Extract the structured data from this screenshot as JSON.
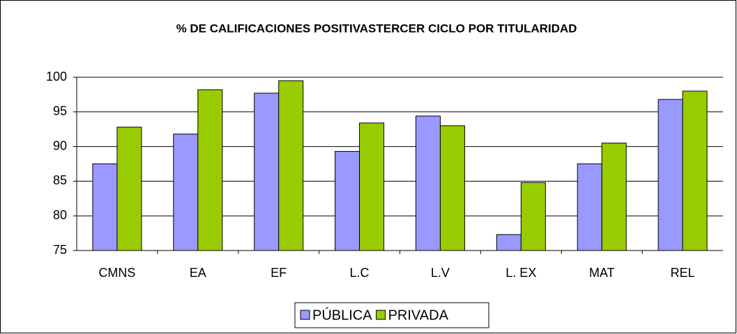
{
  "chart_data": {
    "type": "bar",
    "title": "% DE CALIFICACIONES POSITIVASTERCER CICLO POR TITULARIDAD",
    "categories": [
      "CMNS",
      "EA",
      "EF",
      "L.C",
      "L.V",
      "L. EX",
      "MAT",
      "REL"
    ],
    "series": [
      {
        "name": "PÚBLICA",
        "color": "#9999ff",
        "values": [
          87.5,
          91.8,
          97.7,
          89.3,
          94.4,
          77.3,
          87.5,
          96.8
        ]
      },
      {
        "name": "PRIVADA",
        "color": "#99cc00",
        "values": [
          92.8,
          98.2,
          99.5,
          93.4,
          93.0,
          84.8,
          90.5,
          98.0
        ]
      }
    ],
    "ylim": [
      75,
      100
    ],
    "yticks": [
      75,
      80,
      85,
      90,
      95,
      100
    ],
    "grid": true
  }
}
